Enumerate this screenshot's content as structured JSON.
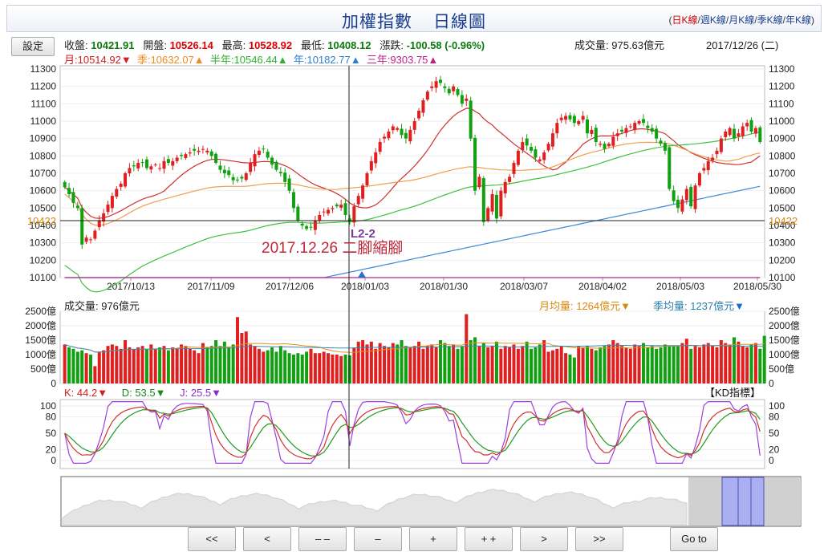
{
  "header": {
    "title": "加權指數",
    "subtitle": "日線圖"
  },
  "klinks": [
    {
      "label": "日K線",
      "active": true
    },
    {
      "label": "週K線",
      "active": false
    },
    {
      "label": "月K線",
      "active": false
    },
    {
      "label": "季K線",
      "active": false
    },
    {
      "label": "年K線",
      "active": false
    }
  ],
  "settings_label": "設定",
  "quote": {
    "close_label": "收盤:",
    "close": "10421.91",
    "open_label": "開盤:",
    "open": "10526.14",
    "high_label": "最高:",
    "high": "10528.92",
    "low_label": "最低:",
    "low": "10408.12",
    "change_label": "漲跌:",
    "change": "-100.58",
    "change_pct": "(-0.96%)",
    "volume_label": "成交量:",
    "volume": "975.63億元",
    "date": "2017/12/26 (二)"
  },
  "ma_legend": [
    {
      "label": "月:10514.92",
      "arrow": "▼",
      "color": "#d02020"
    },
    {
      "label": "季:10632.07",
      "arrow": "▲",
      "color": "#f08a20"
    },
    {
      "label": "半年:10546.44",
      "arrow": "▲",
      "color": "#30b030"
    },
    {
      "label": "年:10182.77",
      "arrow": "▲",
      "color": "#2a80d0"
    },
    {
      "label": "三年:9303.75",
      "arrow": "▲",
      "color": "#c0208a"
    }
  ],
  "price_panel": {
    "y_ticks": [
      "11300",
      "11200",
      "11100",
      "11000",
      "10900",
      "10800",
      "10700",
      "10600",
      "10500",
      "10400",
      "10300",
      "10200",
      "10100"
    ],
    "x_ticks": [
      "2017/10/13",
      "2017/11/09",
      "2017/12/06",
      "2018/01/03",
      "2018/01/30",
      "2018/03/07",
      "2018/04/02",
      "2018/05/03",
      "2018/05/30"
    ],
    "crosshair_value": "10422",
    "annotation_tag": "L2-2",
    "annotation_text": "2017.12.26 二腳縮腳"
  },
  "volume_panel": {
    "label": "成交量: 976億元",
    "month_avg": "月均量: 1264億元",
    "month_arrow": "▼",
    "quarter_avg": "季均量: 1237億元",
    "quarter_arrow": "▼",
    "y_ticks": [
      "2500億",
      "2000億",
      "1500億",
      "1000億",
      "500億",
      "0"
    ]
  },
  "kd_panel": {
    "k_label": "K: 44.2",
    "k_arrow": "▼",
    "d_label": "D: 53.5",
    "d_arrow": "▼",
    "j_label": "J: 25.5",
    "j_arrow": "▼",
    "title": "【KD指標】",
    "y_ticks": [
      "100",
      "80",
      "50",
      "20",
      "0"
    ]
  },
  "nav_buttons": [
    "<<",
    "<",
    "– –",
    "–",
    "+",
    "+ +",
    ">",
    ">>"
  ],
  "goto_label": "Go to",
  "chart_data": {
    "type": "candlestick",
    "title": "加權指數 日線圖",
    "ylim": [
      10100,
      11300
    ],
    "x_tick_labels": [
      "2017/10/13",
      "2017/11/09",
      "2017/12/06",
      "2018/01/03",
      "2018/01/30",
      "2018/03/07",
      "2018/04/02",
      "2018/05/03",
      "2018/05/30"
    ],
    "close_series": [
      10620,
      10580,
      10530,
      10500,
      10290,
      10330,
      10320,
      10370,
      10430,
      10470,
      10520,
      10570,
      10610,
      10640,
      10700,
      10730,
      10740,
      10760,
      10760,
      10730,
      10740,
      10750,
      10730,
      10770,
      10760,
      10770,
      10790,
      10800,
      10810,
      10820,
      10830,
      10830,
      10840,
      10830,
      10800,
      10760,
      10720,
      10700,
      10690,
      10660,
      10660,
      10670,
      10700,
      10760,
      10810,
      10830,
      10840,
      10790,
      10750,
      10720,
      10700,
      10650,
      10600,
      10500,
      10430,
      10400,
      10380,
      10390,
      10430,
      10460,
      10480,
      10490,
      10500,
      10510,
      10520,
      10460,
      10421,
      10510,
      10570,
      10630,
      10700,
      10770,
      10820,
      10880,
      10910,
      10940,
      10970,
      10960,
      10920,
      10900,
      10950,
      11000,
      11060,
      11120,
      11170,
      11200,
      11230,
      11220,
      11190,
      11160,
      11200,
      11150,
      11100,
      11130,
      10900,
      10600,
      10680,
      10420,
      10500,
      10580,
      10440,
      10600,
      10650,
      10680,
      10760,
      10830,
      10880,
      10860,
      10830,
      10790,
      10780,
      10820,
      10870,
      10930,
      10990,
      11020,
      11030,
      11010,
      10990,
      11000,
      11030,
      10930,
      10950,
      10880,
      10870,
      10840,
      10870,
      10910,
      10930,
      10940,
      10960,
      10970,
      10990,
      11000,
      10990,
      10960,
      10940,
      10900,
      10870,
      10830,
      10610,
      10540,
      10500,
      10550,
      10610,
      10510,
      10630,
      10700,
      10730,
      10770,
      10790,
      10830,
      10900,
      10940,
      10960,
      10900,
      10930,
      10970,
      10990,
      10940,
      10960,
      10880
    ],
    "volume_series": [
      1350,
      1250,
      1200,
      1100,
      1150,
      1050,
      1000,
      600,
      1100,
      1150,
      1300,
      1350,
      1300,
      1200,
      1500,
      1250,
      1200,
      1250,
      1300,
      1200,
      1350,
      1200,
      1250,
      1300,
      1150,
      1250,
      1200,
      1350,
      1300,
      1200,
      1150,
      1050,
      1400,
      1250,
      1300,
      1500,
      1300,
      1450,
      1250,
      1350,
      2300,
      1750,
      1800,
      1350,
      1300,
      1200,
      1100,
      1150,
      1250,
      1100,
      1300,
      1150,
      1050,
      1000,
      1050,
      1000,
      1100,
      1200,
      1050,
      1050,
      1100,
      1050,
      1000,
      1000,
      950,
      1000,
      976,
      1250,
      1450,
      1500,
      1350,
      1450,
      1200,
      1400,
      1300,
      1250,
      1400,
      1350,
      1500,
      1300,
      1250,
      1300,
      1450,
      1200,
      1300,
      1350,
      1250,
      1500,
      1400,
      1300,
      1350,
      1200,
      1300,
      2400,
      1500,
      1600,
      1300,
      1400,
      1250,
      1300,
      1450,
      1200,
      1300,
      1250,
      1350,
      1200,
      1300,
      1450,
      1200,
      1250,
      1350,
      1500,
      1100,
      1150,
      1200,
      1300,
      1050,
      1000,
      900,
      1300,
      1250,
      1300,
      1200,
      1150,
      1250,
      1300,
      1350,
      1500,
      1400,
      1300,
      1250,
      1200,
      1350,
      1300,
      1400,
      1250,
      1300,
      1200,
      1250,
      1350,
      1300,
      1300,
      1300,
      1400,
      1550,
      1200,
      1300,
      1250,
      1350,
      1400,
      1300,
      1250,
      1500,
      1400,
      1350,
      1600,
      1450,
      1300,
      1250,
      1350,
      1400,
      1200,
      1650
    ]
  }
}
